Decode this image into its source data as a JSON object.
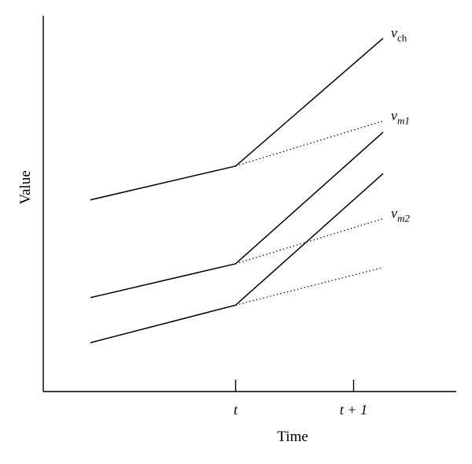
{
  "chart_data": {
    "type": "line",
    "xlabel": "Time",
    "ylabel": "Value",
    "x_ticks": [
      {
        "value": 0,
        "label": "t"
      },
      {
        "value": 1,
        "label": "t + 1"
      }
    ],
    "xlim": [
      -1.63,
      1.87
    ],
    "ylim": [
      0,
      10
    ],
    "series": [
      {
        "name": "v_ch",
        "style": "solid",
        "x": [
          -1.23,
          0,
          1.25
        ],
        "y": [
          5.1,
          6.0,
          9.4
        ]
      },
      {
        "name": "v_m1",
        "style": "dotted",
        "x": [
          0,
          1.25
        ],
        "y": [
          6.0,
          7.2
        ]
      },
      {
        "style": "solid",
        "x": [
          -1.23,
          0,
          1.25
        ],
        "y": [
          2.5,
          3.4,
          6.9
        ]
      },
      {
        "name": "v_m2",
        "style": "dotted",
        "x": [
          0,
          1.25
        ],
        "y": [
          3.4,
          4.6
        ]
      },
      {
        "style": "solid",
        "x": [
          -1.23,
          0,
          1.25
        ],
        "y": [
          1.3,
          2.3,
          5.8
        ]
      },
      {
        "style": "dotted",
        "x": [
          0,
          1.25
        ],
        "y": [
          2.3,
          3.3
        ]
      }
    ],
    "annotations": [
      {
        "series": "v_ch",
        "base": "v",
        "subscript": "ch"
      },
      {
        "series": "v_m1",
        "base": "v",
        "subscript": "m1"
      },
      {
        "series": "v_m2",
        "base": "v",
        "subscript": "m2"
      }
    ]
  }
}
